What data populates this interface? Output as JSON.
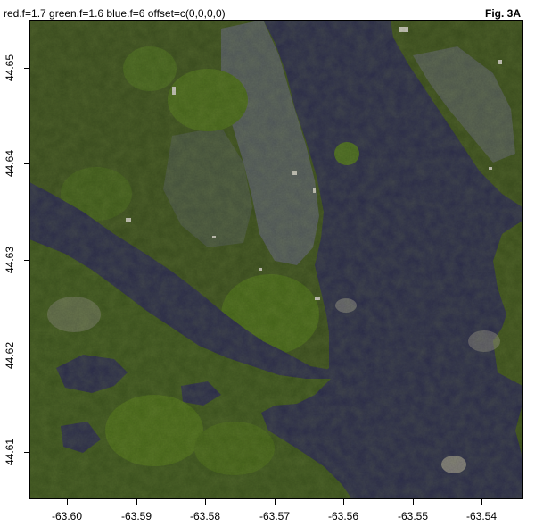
{
  "header": {
    "params_text": "red.f=1.7 green.f=1.6 blue.f=6 offset=c(0,0,0,0)",
    "figure_label": "Fig. 3A"
  },
  "map": {
    "x_ticks": [
      "-63.60",
      "-63.59",
      "-63.58",
      "-63.57",
      "-63.56",
      "-63.55",
      "-63.54"
    ],
    "y_ticks": [
      "44.65",
      "44.64",
      "44.63",
      "44.62",
      "44.61"
    ],
    "colors": {
      "water": "#2e2f4e",
      "land_dark": "#35461e",
      "land_green": "#46651e",
      "urban": "#66677a",
      "frame": "#000000"
    }
  }
}
